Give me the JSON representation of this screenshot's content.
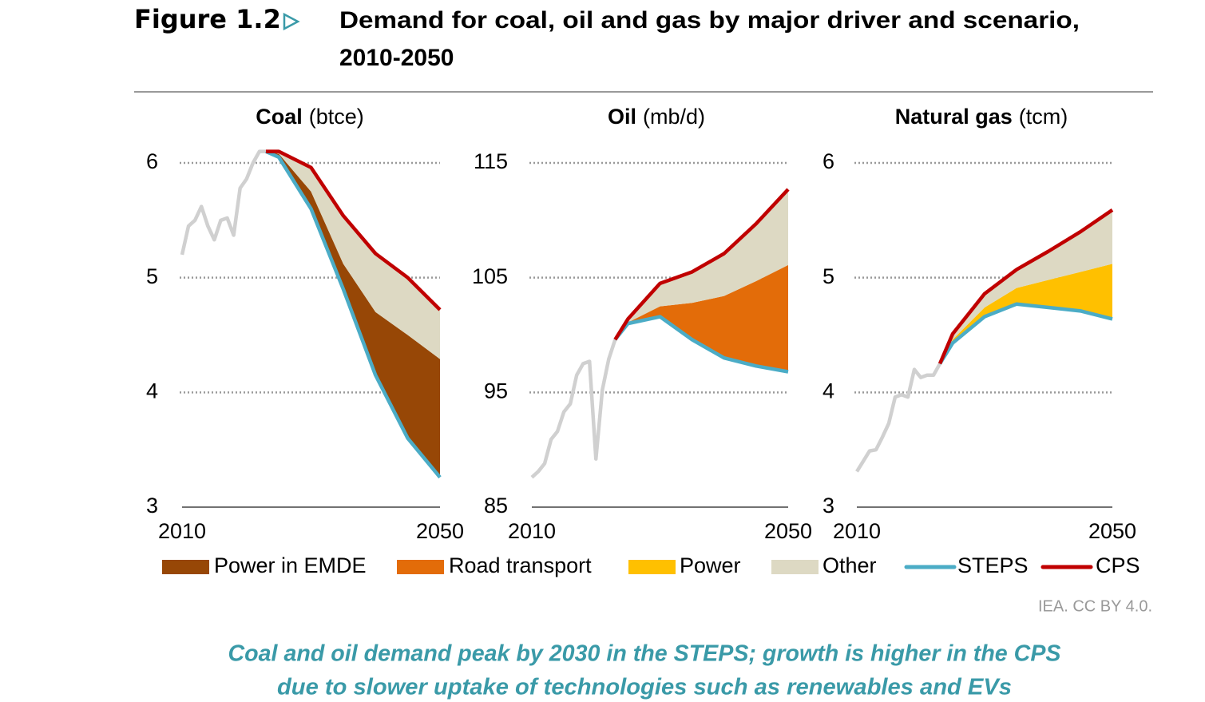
{
  "header": {
    "figure_label": "Figure 1.2",
    "title_lines": [
      "Demand for coal, oil and gas by major driver and scenario,",
      "2010-2050"
    ]
  },
  "chart_data": [
    {
      "type": "line",
      "title": "Coal",
      "unit_label": "(btce)",
      "x": [
        2010,
        2011,
        2012,
        2013,
        2014,
        2015,
        2016,
        2017,
        2018,
        2019,
        2020,
        2021,
        2022,
        2023,
        2025,
        2030,
        2035,
        2040,
        2045,
        2050
      ],
      "xlim": [
        2010,
        2050
      ],
      "xticks": [
        2010,
        2050
      ],
      "ylim": [
        3,
        6
      ],
      "yticks": [
        3,
        4,
        5,
        6
      ],
      "grid": true,
      "history": {
        "color": "#d0d0d0",
        "values": [
          5.2,
          5.45,
          5.5,
          5.62,
          5.45,
          5.33,
          5.5,
          5.52,
          5.37,
          5.78,
          5.86,
          6.0,
          6.1,
          6.1,
          null,
          null,
          null,
          null,
          null,
          null
        ]
      },
      "series": [
        {
          "name": "STEPS",
          "kind": "line",
          "color": "#4bacc6",
          "values": [
            null,
            null,
            null,
            null,
            null,
            null,
            null,
            null,
            null,
            null,
            null,
            null,
            null,
            6.1,
            6.05,
            5.6,
            4.9,
            4.15,
            3.6,
            3.26
          ]
        },
        {
          "name": "CPS",
          "kind": "line",
          "color": "#c00000",
          "values": [
            null,
            null,
            null,
            null,
            null,
            null,
            null,
            null,
            null,
            null,
            null,
            null,
            null,
            6.1,
            6.1,
            5.96,
            5.54,
            5.21,
            5.0,
            4.72
          ]
        },
        {
          "name": "Power in EMDE",
          "kind": "area",
          "color": "#974706",
          "values": [
            null,
            null,
            null,
            null,
            null,
            null,
            null,
            null,
            null,
            null,
            null,
            null,
            null,
            0,
            0.03,
            0.15,
            0.22,
            0.55,
            0.9,
            1.03
          ]
        },
        {
          "name": "Other",
          "kind": "area",
          "color": "#ddd9c3",
          "values": [
            null,
            null,
            null,
            null,
            null,
            null,
            null,
            null,
            null,
            null,
            null,
            null,
            null,
            0,
            0.02,
            0.21,
            0.42,
            0.51,
            0.5,
            0.43
          ]
        }
      ]
    },
    {
      "type": "line",
      "title": "Oil",
      "unit_label": "(mb/d)",
      "x": [
        2010,
        2011,
        2012,
        2013,
        2014,
        2015,
        2016,
        2017,
        2018,
        2019,
        2020,
        2021,
        2022,
        2023,
        2025,
        2030,
        2035,
        2040,
        2045,
        2050
      ],
      "xlim": [
        2010,
        2050
      ],
      "xticks": [
        2010,
        2050
      ],
      "ylim": [
        85,
        115
      ],
      "yticks": [
        85,
        95,
        105,
        115
      ],
      "grid": true,
      "history": {
        "color": "#d0d0d0",
        "values": [
          87.6,
          88.1,
          88.8,
          90.9,
          91.6,
          93.3,
          94.0,
          96.5,
          97.5,
          97.7,
          89.2,
          95.2,
          97.9,
          99.6,
          null,
          null,
          null,
          null,
          null,
          null
        ]
      },
      "series": [
        {
          "name": "STEPS",
          "kind": "line",
          "color": "#4bacc6",
          "values": [
            null,
            null,
            null,
            null,
            null,
            null,
            null,
            null,
            null,
            null,
            null,
            null,
            null,
            99.6,
            101.0,
            101.6,
            99.6,
            98.0,
            97.3,
            96.8
          ]
        },
        {
          "name": "CPS",
          "kind": "line",
          "color": "#c00000",
          "values": [
            null,
            null,
            null,
            null,
            null,
            null,
            null,
            null,
            null,
            null,
            null,
            null,
            null,
            99.6,
            101.4,
            104.5,
            105.5,
            107.1,
            109.7,
            112.7
          ]
        },
        {
          "name": "Road transport",
          "kind": "area",
          "color": "#e36c09",
          "values": [
            null,
            null,
            null,
            null,
            null,
            null,
            null,
            null,
            null,
            null,
            null,
            null,
            null,
            0,
            0.1,
            0.9,
            3.2,
            5.4,
            7.4,
            9.3
          ]
        },
        {
          "name": "Other",
          "kind": "area",
          "color": "#ddd9c3",
          "values": [
            null,
            null,
            null,
            null,
            null,
            null,
            null,
            null,
            null,
            null,
            null,
            null,
            null,
            0,
            0.3,
            2.0,
            2.7,
            3.7,
            5.0,
            6.6
          ]
        }
      ]
    },
    {
      "type": "line",
      "title": "Natural gas",
      "unit_label": "(tcm)",
      "x": [
        2010,
        2011,
        2012,
        2013,
        2014,
        2015,
        2016,
        2017,
        2018,
        2019,
        2020,
        2021,
        2022,
        2023,
        2025,
        2030,
        2035,
        2040,
        2045,
        2050
      ],
      "xlim": [
        2010,
        2050
      ],
      "xticks": [
        2010,
        2050
      ],
      "ylim": [
        3,
        6
      ],
      "yticks": [
        3,
        4,
        5,
        6
      ],
      "grid": true,
      "history": {
        "color": "#d0d0d0",
        "values": [
          3.31,
          3.4,
          3.49,
          3.5,
          3.61,
          3.73,
          3.96,
          3.98,
          3.96,
          4.2,
          4.13,
          4.15,
          4.15,
          4.25,
          null,
          null,
          null,
          null,
          null,
          null
        ]
      },
      "series": [
        {
          "name": "STEPS",
          "kind": "line",
          "color": "#4bacc6",
          "values": [
            null,
            null,
            null,
            null,
            null,
            null,
            null,
            null,
            null,
            null,
            null,
            null,
            null,
            4.25,
            4.43,
            4.66,
            4.77,
            4.74,
            4.71,
            4.64
          ]
        },
        {
          "name": "CPS",
          "kind": "line",
          "color": "#c00000",
          "values": [
            null,
            null,
            null,
            null,
            null,
            null,
            null,
            null,
            null,
            null,
            null,
            null,
            null,
            4.25,
            4.51,
            4.86,
            5.07,
            5.23,
            5.4,
            5.59
          ]
        },
        {
          "name": "Power",
          "kind": "area",
          "color": "#ffc000",
          "values": [
            null,
            null,
            null,
            null,
            null,
            null,
            null,
            null,
            null,
            null,
            null,
            null,
            null,
            0,
            0.03,
            0.08,
            0.14,
            0.24,
            0.34,
            0.48
          ]
        },
        {
          "name": "Other",
          "kind": "area",
          "color": "#ddd9c3",
          "values": [
            null,
            null,
            null,
            null,
            null,
            null,
            null,
            null,
            null,
            null,
            null,
            null,
            null,
            0,
            0.05,
            0.12,
            0.16,
            0.25,
            0.35,
            0.47
          ]
        }
      ]
    }
  ],
  "source": "IEA. CC BY 4.0.",
  "caption_lines": [
    "Coal and oil demand peak by 2030 in the STEPS; growth is higher in the CPS",
    "due to slower uptake of technologies such as renewables and EVs"
  ]
}
